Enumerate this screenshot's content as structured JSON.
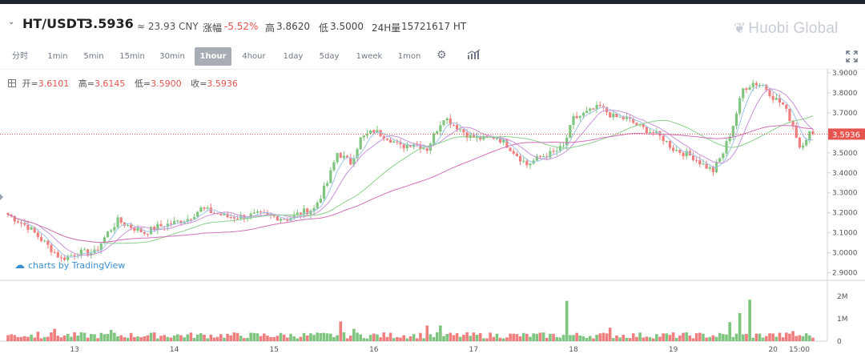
{
  "header": {
    "pair": "HT/USDT",
    "price": "3.5936",
    "approx": "≈ 23.93 CNY",
    "change_label": "涨幅",
    "change_value": "-5.52%",
    "high_label": "高",
    "high_value": "3.8620",
    "low_label": "低",
    "low_value": "3.5000",
    "volume_label": "24H量",
    "volume_value": "15721617 HT"
  },
  "brand": "Huobi Global",
  "toolbar": {
    "intervals": [
      "分时",
      "1min",
      "5min",
      "15min",
      "30min",
      "1hour",
      "4hour",
      "1day",
      "5day",
      "1week",
      "1mon"
    ],
    "active": "1hour"
  },
  "ohlc": {
    "open_label": "开=",
    "open": "3.6101",
    "high_label": "高=",
    "high": "3.6145",
    "low_label": "低=",
    "low": "3.5900",
    "close_label": "收=",
    "close": "3.5936"
  },
  "watermark": "charts by TradingView",
  "colors": {
    "up": "#7fc57f",
    "down": "#ef7e7e",
    "ma_fast": "#9fc3e8",
    "ma_mid": "#c792d8",
    "ma_slow": "#8ccf8c",
    "ma_long": "#d46fb8",
    "last_price": "#e5544f"
  },
  "chart_data": {
    "type": "candlestick",
    "title": "HT/USDT 1hour",
    "price_axis": {
      "ticks": [
        "3.9000",
        "3.8000",
        "3.7000",
        "3.6000",
        "3.5000",
        "3.4000",
        "3.3000",
        "3.2000",
        "3.1000",
        "3.0000",
        "2.9000"
      ],
      "range": [
        2.87,
        3.92
      ]
    },
    "volume_axis": {
      "ticks": [
        "2M",
        "1M",
        "0"
      ],
      "range": [
        0,
        2500000
      ]
    },
    "x_labels": [
      "13",
      "14",
      "15",
      "16",
      "17",
      "18",
      "19",
      "20",
      "15:00"
    ],
    "last_price": "3.5936",
    "anchors": [
      [
        0,
        3.19
      ],
      [
        6,
        3.13
      ],
      [
        11,
        3.05
      ],
      [
        16,
        2.97
      ],
      [
        21,
        3.0
      ],
      [
        26,
        3.0
      ],
      [
        30,
        3.1
      ],
      [
        33,
        3.16
      ],
      [
        37,
        3.13
      ],
      [
        41,
        3.1
      ],
      [
        45,
        3.13
      ],
      [
        50,
        3.15
      ],
      [
        54,
        3.17
      ],
      [
        58,
        3.22
      ],
      [
        62,
        3.2
      ],
      [
        66,
        3.18
      ],
      [
        70,
        3.18
      ],
      [
        75,
        3.19
      ],
      [
        80,
        3.18
      ],
      [
        84,
        3.17
      ],
      [
        88,
        3.2
      ],
      [
        92,
        3.22
      ],
      [
        96,
        3.35
      ],
      [
        99,
        3.5
      ],
      [
        103,
        3.45
      ],
      [
        106,
        3.57
      ],
      [
        110,
        3.61
      ],
      [
        114,
        3.58
      ],
      [
        118,
        3.53
      ],
      [
        122,
        3.55
      ],
      [
        126,
        3.52
      ],
      [
        129,
        3.62
      ],
      [
        131,
        3.68
      ],
      [
        135,
        3.63
      ],
      [
        139,
        3.58
      ],
      [
        143,
        3.57
      ],
      [
        147,
        3.58
      ],
      [
        150,
        3.54
      ],
      [
        153,
        3.49
      ],
      [
        156,
        3.44
      ],
      [
        160,
        3.48
      ],
      [
        164,
        3.5
      ],
      [
        167,
        3.53
      ],
      [
        170,
        3.67
      ],
      [
        174,
        3.7
      ],
      [
        178,
        3.73
      ],
      [
        182,
        3.68
      ],
      [
        186,
        3.67
      ],
      [
        190,
        3.63
      ],
      [
        194,
        3.6
      ],
      [
        197,
        3.57
      ],
      [
        200,
        3.52
      ],
      [
        203,
        3.5
      ],
      [
        206,
        3.48
      ],
      [
        209,
        3.44
      ],
      [
        212,
        3.41
      ],
      [
        215,
        3.5
      ],
      [
        218,
        3.64
      ],
      [
        221,
        3.82
      ],
      [
        224,
        3.85
      ],
      [
        227,
        3.84
      ],
      [
        230,
        3.78
      ],
      [
        233,
        3.74
      ],
      [
        236,
        3.64
      ],
      [
        238,
        3.53
      ],
      [
        241,
        3.6
      ],
      [
        242,
        3.59
      ]
    ],
    "volumes_est": {
      "spikes": [
        [
          9,
          0.42
        ],
        [
          14,
          0.55
        ],
        [
          31,
          0.5
        ],
        [
          100,
          0.88
        ],
        [
          104,
          0.55
        ],
        [
          126,
          0.7
        ],
        [
          130,
          0.7
        ],
        [
          168,
          1.8
        ],
        [
          181,
          0.6
        ],
        [
          217,
          0.85
        ],
        [
          220,
          1.25
        ],
        [
          223,
          1.85
        ],
        [
          229,
          0.35
        ],
        [
          236,
          0.45
        ]
      ],
      "baseline": 0.12
    },
    "ma_lines": [
      "MA5",
      "MA10",
      "MA30",
      "MA60"
    ]
  }
}
